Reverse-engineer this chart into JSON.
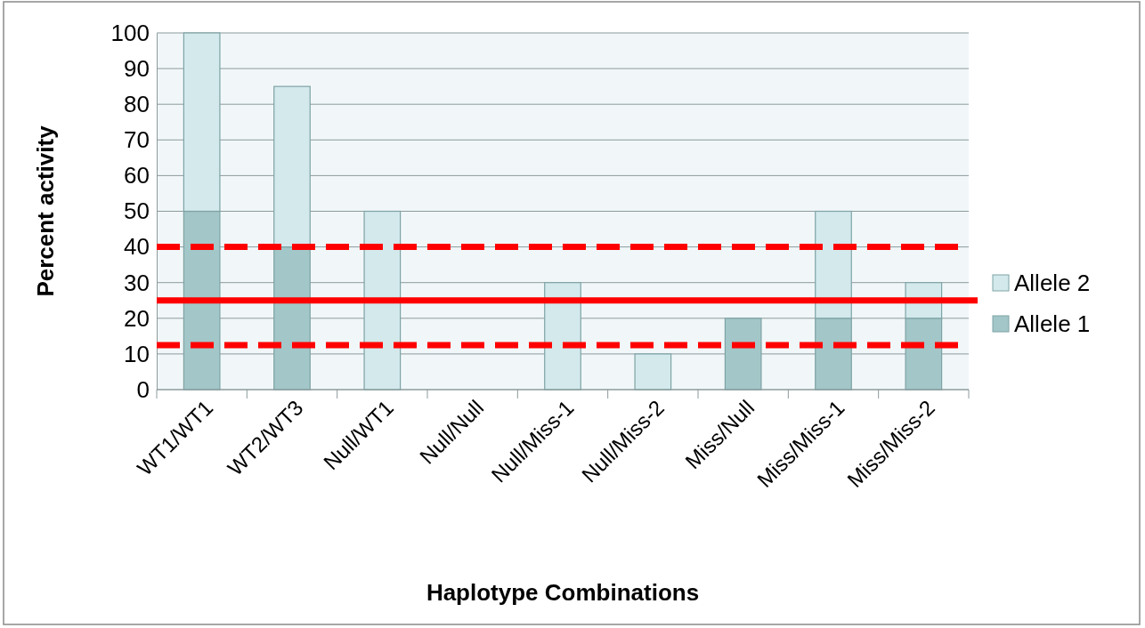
{
  "chart_data": {
    "type": "bar",
    "stacked": true,
    "xlabel": "Haplotype Combinations",
    "ylabel": "Percent activity",
    "categories": [
      "WT1/WT1",
      "WT2/WT3",
      "Null/WT1",
      "Null/Null",
      "Null/Miss-1",
      "Null/Miss-2",
      "Miss/Null",
      "Miss/Miss-1",
      "Miss/Miss-2"
    ],
    "series": [
      {
        "name": "Allele 1",
        "color": "#a3c6c8",
        "values": [
          50,
          40,
          0,
          0,
          0,
          0,
          20,
          20,
          20
        ]
      },
      {
        "name": "Allele 2",
        "color": "#d3e9ec",
        "values": [
          50,
          45,
          50,
          0,
          30,
          10,
          0,
          30,
          10
        ]
      }
    ],
    "ylim": [
      0,
      100
    ],
    "yticks": [
      0,
      10,
      20,
      30,
      40,
      50,
      60,
      70,
      80,
      90,
      100
    ],
    "grid": "y",
    "legend": "right",
    "ref_lines": [
      {
        "axis": "y",
        "value": 40,
        "color": "#ff0000",
        "line_style": "dashed"
      },
      {
        "axis": "y",
        "value": 25,
        "color": "#ff0000",
        "line_style": "solid"
      },
      {
        "axis": "y",
        "value": 12.5,
        "color": "#ff0000",
        "line_style": "dashed"
      }
    ]
  }
}
